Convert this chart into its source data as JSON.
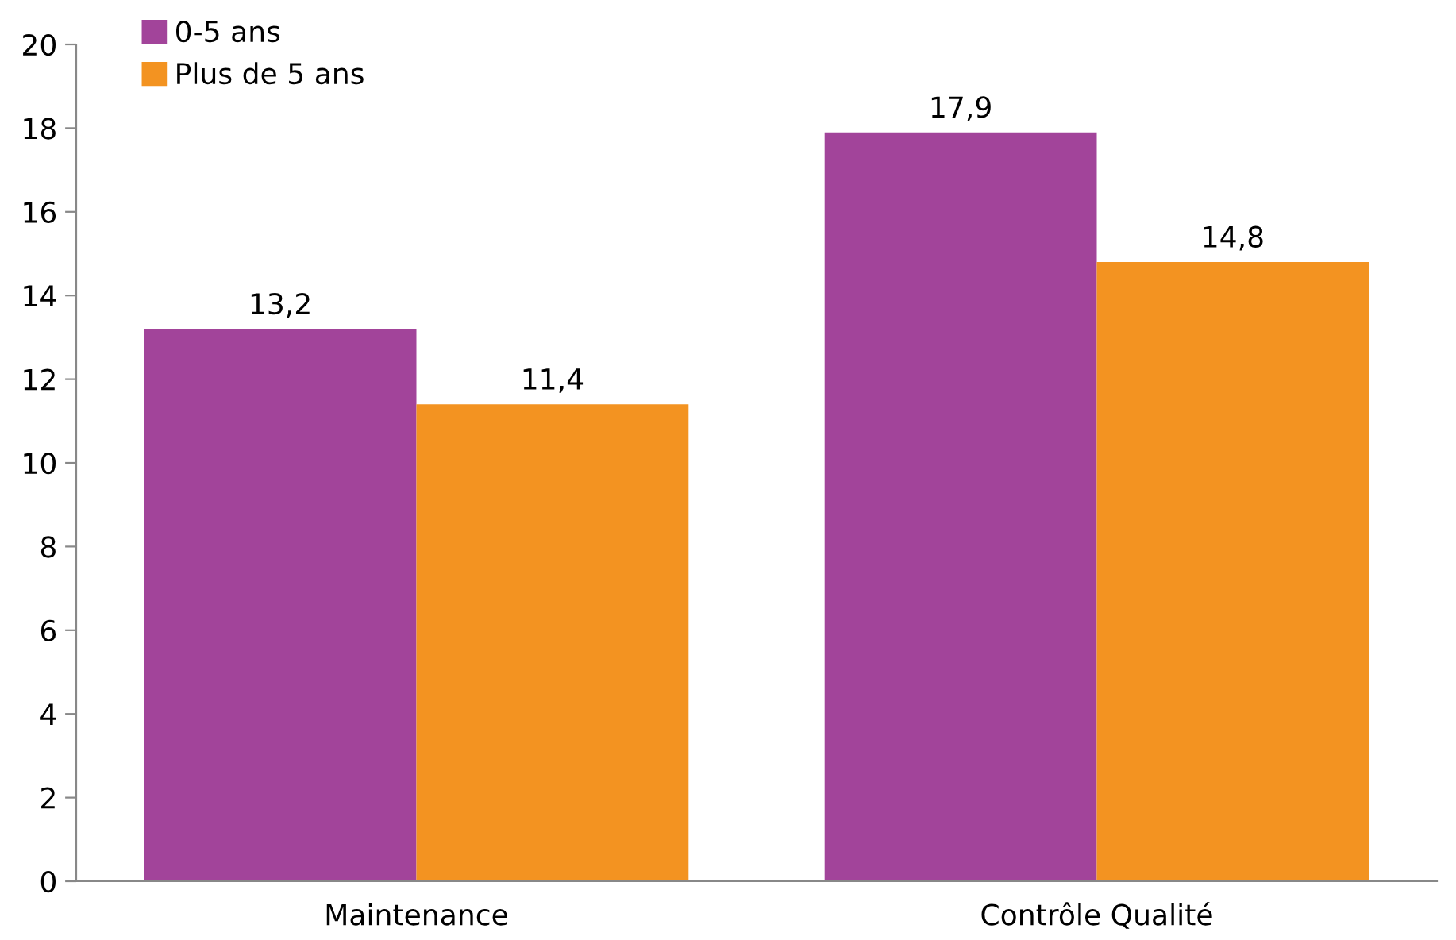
{
  "chart_data": {
    "type": "bar",
    "categories": [
      "Maintenance",
      "Contrôle Qualité"
    ],
    "series": [
      {
        "name": "0-5 ans",
        "color": "#a2449a",
        "values": [
          13.2,
          17.9
        ],
        "value_labels": [
          "13,2",
          "17,9"
        ]
      },
      {
        "name": "Plus de 5 ans",
        "color": "#f39321",
        "values": [
          11.4,
          14.8
        ],
        "value_labels": [
          "11,4",
          "14,8"
        ]
      }
    ],
    "ylim": [
      0,
      20
    ],
    "yticks": [
      0,
      2,
      4,
      6,
      8,
      10,
      12,
      14,
      16,
      18,
      20
    ],
    "grid": false,
    "legend": "top left"
  }
}
